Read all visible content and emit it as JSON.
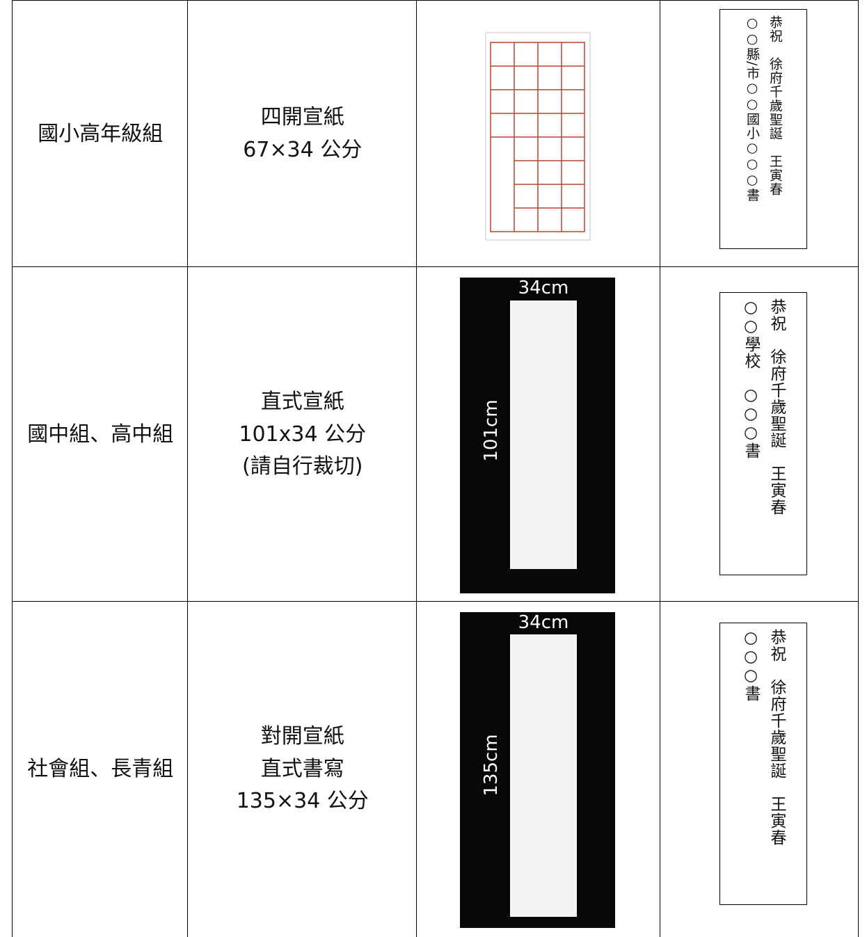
{
  "table": {
    "rows": [
      {
        "group": "國小高年級組",
        "spec": [
          "四開宣紙",
          "67×34 公分"
        ],
        "sample": [
          "恭祝　徐府千歲聖誕　王寅春",
          "○○縣/市○○國小○○○書"
        ]
      },
      {
        "group": "國中組、高中組",
        "spec": [
          "直式宣紙",
          "101x34 公分",
          "(請自行裁切)"
        ],
        "image": {
          "width_label": "34cm",
          "height_label": "101cm"
        },
        "sample": [
          "恭祝　徐府千歲聖誕　王寅春",
          "○○學校　○○○書"
        ]
      },
      {
        "group": "社會組、長青組",
        "spec": [
          "對開宣紙",
          "直式書寫",
          "135×34 公分"
        ],
        "image": {
          "width_label": "34cm",
          "height_label": "135cm"
        },
        "sample": [
          "恭祝　徐府千歲聖誕　王寅春",
          "○○○書"
        ]
      }
    ]
  }
}
